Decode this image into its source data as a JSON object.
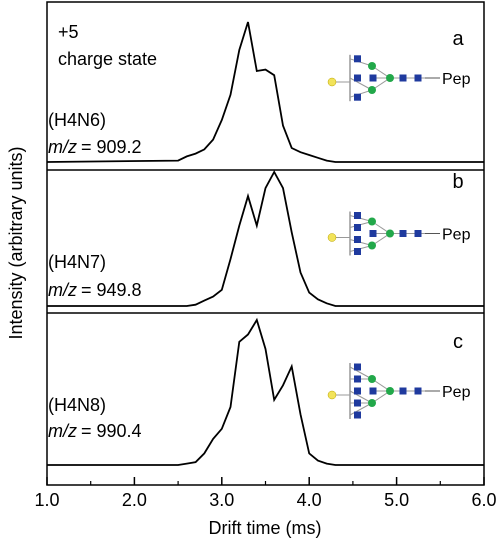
{
  "chart_data": {
    "type": "line",
    "ylabel": "Intensity (arbitrary units)",
    "xlabel": "Drift time (ms)",
    "annotation": [
      "+5",
      "charge state"
    ],
    "xlim": [
      1.0,
      6.0
    ],
    "ylim": [
      0,
      110
    ],
    "xticks": [
      {
        "value": 1.0,
        "label": "1.0"
      },
      {
        "value": 2.0,
        "label": "2.0"
      },
      {
        "value": 3.0,
        "label": "3.0"
      },
      {
        "value": 4.0,
        "label": "4.0"
      },
      {
        "value": 5.0,
        "label": "5.0"
      },
      {
        "value": 6.0,
        "label": "6.0"
      }
    ],
    "x": [
      1.0,
      2.5,
      2.6,
      2.7,
      2.8,
      2.9,
      3.0,
      3.1,
      3.2,
      3.3,
      3.4,
      3.5,
      3.6,
      3.7,
      3.8,
      3.9,
      4.0,
      4.1,
      4.2,
      4.3,
      4.5,
      5.0,
      6.0
    ],
    "series": [
      {
        "name": "a",
        "color": "#000000",
        "composition": "(H4N6)",
        "mz_symbol": "m/z",
        "mz_value": "= 909.2",
        "peptide": "Pep",
        "values": [
          0,
          1,
          4,
          6,
          9,
          16,
          30,
          48,
          80,
          100,
          65,
          66,
          62,
          26,
          10,
          7,
          5,
          3,
          1,
          0,
          0,
          0,
          0
        ]
      },
      {
        "name": "b",
        "color": "#000000",
        "composition": "(H4N7)",
        "mz_symbol": "m/z",
        "mz_value": "= 949.8",
        "peptide": "Pep",
        "values": [
          0,
          0,
          0,
          1,
          4,
          7,
          12,
          35,
          60,
          82,
          60,
          88,
          100,
          88,
          55,
          25,
          10,
          5,
          2,
          0,
          0,
          0,
          0
        ]
      },
      {
        "name": "c",
        "color": "#000000",
        "composition": "(H4N8)",
        "mz_symbol": "m/z",
        "mz_value": "= 990.4",
        "peptide": "Pep",
        "values": [
          0,
          0,
          1,
          2,
          8,
          18,
          25,
          40,
          85,
          90,
          100,
          80,
          45,
          55,
          68,
          35,
          8,
          3,
          1,
          0,
          0,
          0,
          0
        ]
      }
    ]
  }
}
